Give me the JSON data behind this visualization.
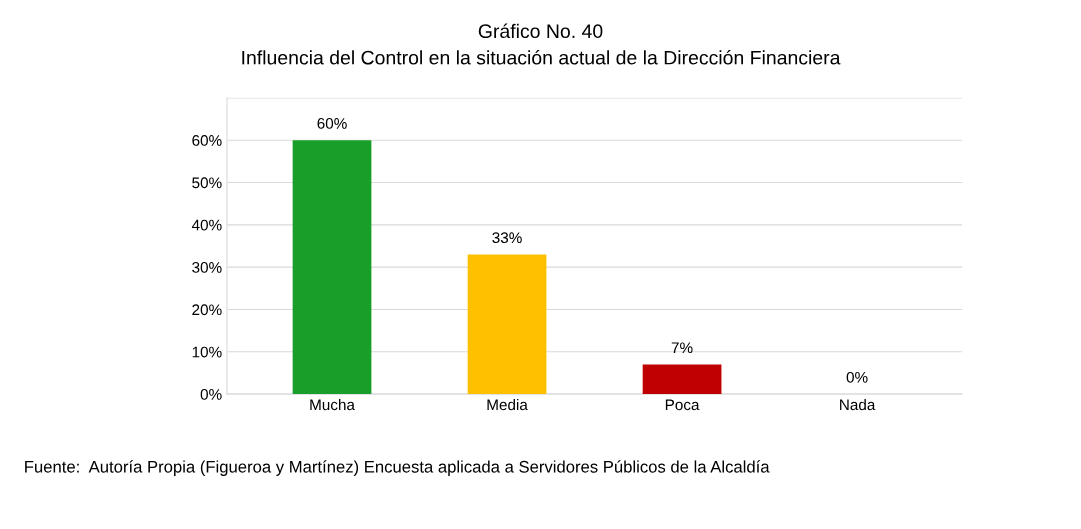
{
  "chart_data": {
    "type": "bar",
    "title": "Gráfico No. 40",
    "subtitle": "Influencia del Control en la situación actual de la Dirección Financiera",
    "categories": [
      "Mucha",
      "Media",
      "Poca",
      "Nada"
    ],
    "values": [
      60,
      33,
      7,
      0
    ],
    "colors": [
      "#1a9e2a",
      "#ffc000",
      "#c00000",
      "#cc0066"
    ],
    "value_labels": [
      "60%",
      "33%",
      "7%",
      "0%"
    ],
    "ylim": [
      0,
      70
    ],
    "yticks": [
      {
        "value": 0,
        "label": "0%"
      },
      {
        "value": 10,
        "label": "10%"
      },
      {
        "value": 20,
        "label": "20%"
      },
      {
        "value": 30,
        "label": "30%"
      },
      {
        "value": 40,
        "label": "40%"
      },
      {
        "value": 50,
        "label": "50%"
      },
      {
        "value": 60,
        "label": "60%"
      },
      {
        "value": 70,
        "label": null
      }
    ],
    "grid": "y",
    "annotations": [
      "Fuente:  Autoría Propia (Figueroa y Martínez) Encuesta aplicada a Servidores Públicos de la Alcaldía"
    ]
  }
}
